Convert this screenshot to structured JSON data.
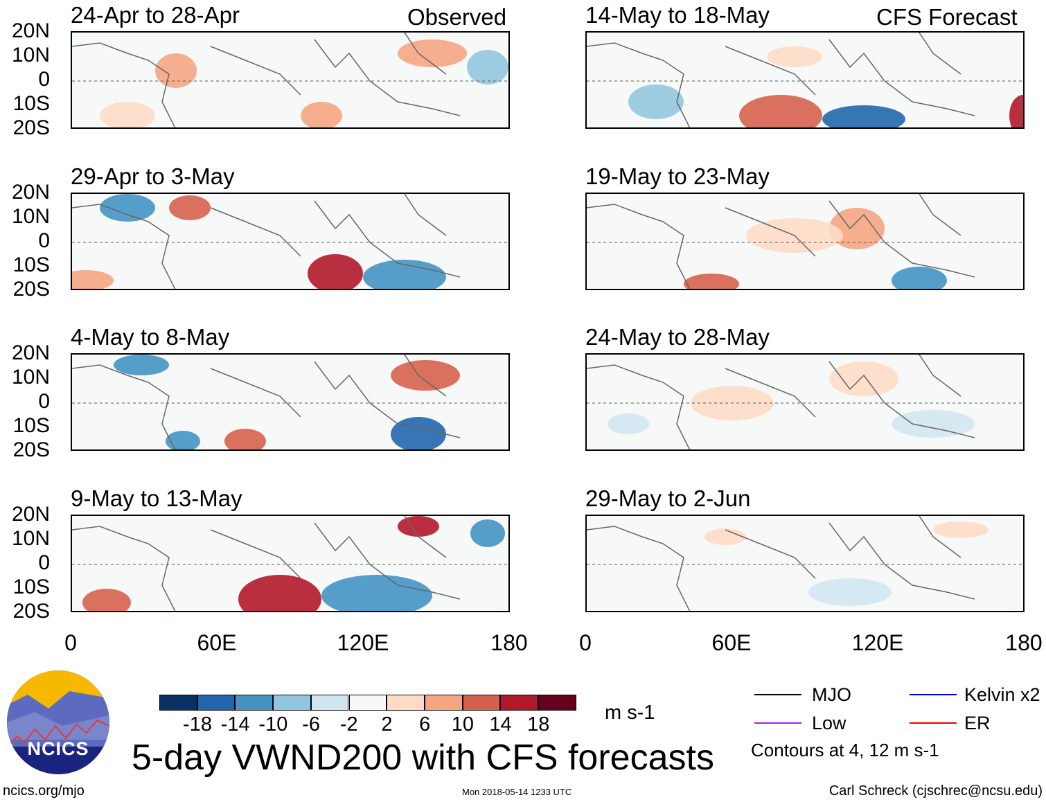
{
  "panels_left": {
    "header": "Observed",
    "titles": [
      "24-Apr to 28-Apr",
      "29-Apr to 3-May",
      "4-May to 8-May",
      "9-May to 13-May"
    ]
  },
  "panels_right": {
    "header": "CFS Forecast",
    "titles": [
      "14-May to 18-May",
      "19-May to 23-May",
      "24-May to 28-May",
      "29-May to 2-Jun"
    ]
  },
  "lat_labels": [
    "20N",
    "10N",
    "0",
    "10S",
    "20S"
  ],
  "lon_labels": [
    "0",
    "60E",
    "120E",
    "180"
  ],
  "colorbar": {
    "labels": [
      "-18",
      "-14",
      "-10",
      "-6",
      "-2",
      "2",
      "6",
      "10",
      "14",
      "18"
    ],
    "units": "m s-1",
    "colors": [
      "#0a3161",
      "#2166ac",
      "#4393c3",
      "#92c5de",
      "#d1e5f0",
      "#f7f7f7",
      "#fddbc7",
      "#f4a582",
      "#d6604d",
      "#b2182b",
      "#67001f"
    ]
  },
  "legend": {
    "items": [
      {
        "label": "MJO",
        "color": "#000000"
      },
      {
        "label": "Kelvin x2",
        "color": "#0000ee"
      },
      {
        "label": "Low",
        "color": "#a020f0"
      },
      {
        "label": "ER",
        "color": "#ee0000"
      }
    ],
    "note": "Contours at 4, 12 m s-1"
  },
  "title": "5-day VWND200 with CFS forecasts",
  "logo": {
    "text": "NCICS"
  },
  "footer": {
    "url": "ncics.org/mjo",
    "timestamp": "Mon 2018-05-14 1233 UTC",
    "author": "Carl Schreck (cjschrec@ncsu.edu)"
  }
}
